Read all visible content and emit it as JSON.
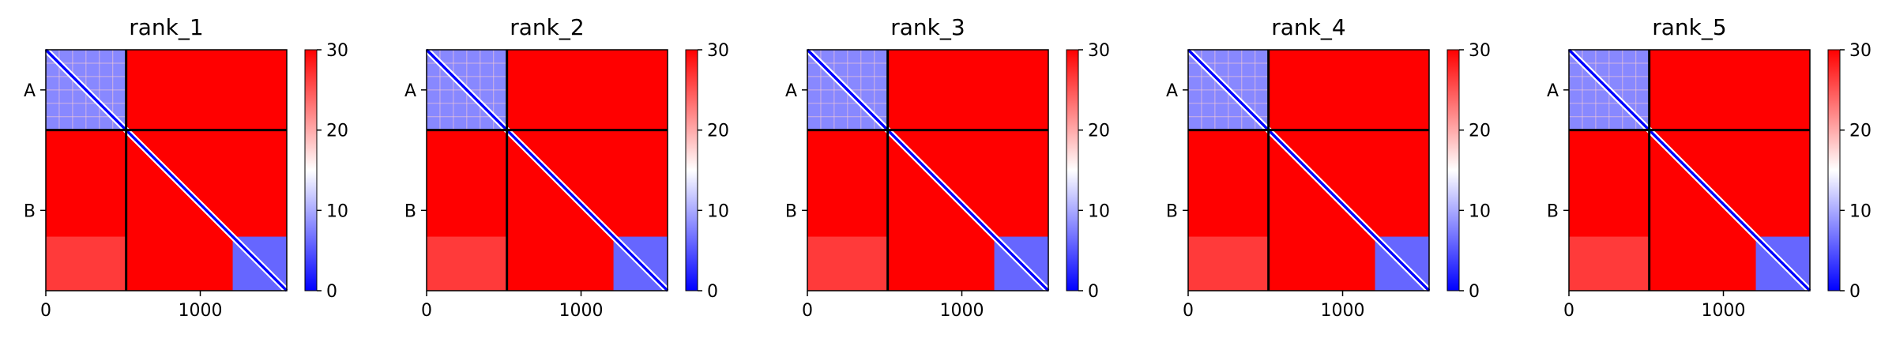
{
  "chart_data": {
    "type": "heatmap",
    "panel_titles": [
      "rank_1",
      "rank_2",
      "rank_3",
      "rank_4",
      "rank_5"
    ],
    "n_residues": 1560,
    "chain_boundary": 520,
    "chains": [
      "A",
      "B"
    ],
    "x_ticks": [
      0,
      1000
    ],
    "colorbar": {
      "min": 0,
      "max": 30,
      "ticks": [
        0,
        10,
        20,
        30
      ],
      "colormap": [
        "#0000ff",
        "#ffffff",
        "#ff0000"
      ]
    },
    "colors": {
      "high": "#ff0000",
      "mid": "#ffffff",
      "low": "#0000ff",
      "separator": "#000000"
    },
    "blocks": {
      "A_A_mean": 8,
      "A_B_mean": 30,
      "B_A_mean": 30,
      "B_B_mean": 30,
      "diagonal": 0,
      "diagonal_band_width_residues": 25,
      "B_C_terminal_domain_range": [
        1210,
        1560
      ],
      "B_C_terminal_domain_mean": 6,
      "B_C_terminal_to_A_mean": 26
    }
  }
}
